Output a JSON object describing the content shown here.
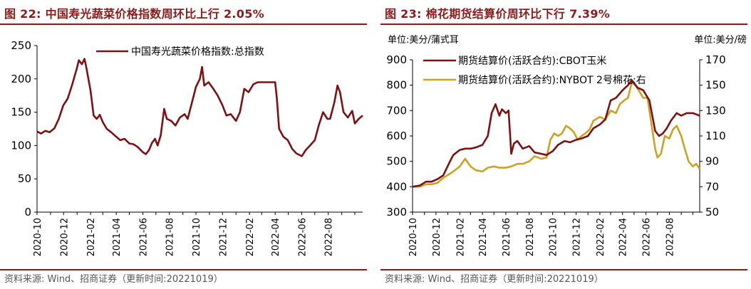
{
  "panels": {
    "left": {
      "title": "图 22:  中国寿光蔬菜价格指数周环比上行 2.05%",
      "source": "资料来源: Wind、招商证券（更新时间:20221019）"
    },
    "right": {
      "title": "图 23:  棉花期货结算价周环比下行 7.39%",
      "source": "资料来源: Wind、招商证券（更新时间:20221019）",
      "unit_left": "单位:美分/蒲式耳",
      "unit_right": "单位:美分/磅"
    }
  },
  "colors": {
    "accent": "#8B1A1A",
    "series_dark": "#7B1113",
    "series_gold": "#C9A227",
    "axis": "#000000",
    "source_text": "#555555"
  },
  "chart_data": [
    {
      "type": "line",
      "title": "中国寿光蔬菜价格指数周环比上行 2.05%",
      "x_tick_labels": [
        "2020-10",
        "2020-12",
        "2021-02",
        "2021-04",
        "2021-06",
        "2021-08",
        "2021-10",
        "2021-12",
        "2022-02",
        "2022-04",
        "2022-06",
        "2022-08"
      ],
      "x_range": [
        "2020-10-01",
        "2022-10-19"
      ],
      "ylim": [
        0,
        250
      ],
      "yticks": [
        0,
        50,
        100,
        150,
        200,
        250
      ],
      "legend_position": "top-right",
      "grid": false,
      "series": [
        {
          "name": "中国寿光蔬菜价格指数:总指数",
          "color": "#7B1113",
          "points": [
            [
              "2020-10-01",
              121
            ],
            [
              "2020-10-10",
              118
            ],
            [
              "2020-10-20",
              122
            ],
            [
              "2020-10-30",
              120
            ],
            [
              "2020-11-10",
              126
            ],
            [
              "2020-11-20",
              140
            ],
            [
              "2020-11-30",
              160
            ],
            [
              "2020-12-10",
              170
            ],
            [
              "2020-12-20",
              190
            ],
            [
              "2020-12-31",
              215
            ],
            [
              "2021-01-05",
              228
            ],
            [
              "2021-01-12",
              222
            ],
            [
              "2021-01-18",
              230
            ],
            [
              "2021-01-22",
              218
            ],
            [
              "2021-02-01",
              182
            ],
            [
              "2021-02-08",
              145
            ],
            [
              "2021-02-15",
              140
            ],
            [
              "2021-02-22",
              146
            ],
            [
              "2021-03-01",
              135
            ],
            [
              "2021-03-10",
              125
            ],
            [
              "2021-03-20",
              120
            ],
            [
              "2021-04-01",
              113
            ],
            [
              "2021-04-10",
              108
            ],
            [
              "2021-04-20",
              110
            ],
            [
              "2021-05-01",
              103
            ],
            [
              "2021-05-10",
              102
            ],
            [
              "2021-05-20",
              98
            ],
            [
              "2021-06-01",
              90
            ],
            [
              "2021-06-08",
              87
            ],
            [
              "2021-06-15",
              93
            ],
            [
              "2021-06-22",
              104
            ],
            [
              "2021-06-29",
              110
            ],
            [
              "2021-07-05",
              100
            ],
            [
              "2021-07-12",
              115
            ],
            [
              "2021-07-20",
              155
            ],
            [
              "2021-07-26",
              140
            ],
            [
              "2021-08-05",
              137
            ],
            [
              "2021-08-15",
              130
            ],
            [
              "2021-08-25",
              142
            ],
            [
              "2021-09-05",
              147
            ],
            [
              "2021-09-12",
              140
            ],
            [
              "2021-09-20",
              160
            ],
            [
              "2021-10-01",
              188
            ],
            [
              "2021-10-10",
              200
            ],
            [
              "2021-10-15",
              218
            ],
            [
              "2021-10-20",
              190
            ],
            [
              "2021-10-30",
              195
            ],
            [
              "2021-11-10",
              185
            ],
            [
              "2021-11-20",
              175
            ],
            [
              "2021-12-01",
              160
            ],
            [
              "2021-12-10",
              145
            ],
            [
              "2021-12-20",
              147
            ],
            [
              "2022-01-01",
              137
            ],
            [
              "2022-01-10",
              150
            ],
            [
              "2022-01-20",
              185
            ],
            [
              "2022-01-30",
              180
            ],
            [
              "2022-02-10",
              192
            ],
            [
              "2022-02-20",
              195
            ],
            [
              "2022-03-01",
              195
            ],
            [
              "2022-03-20",
              195
            ],
            [
              "2022-04-01",
              195
            ],
            [
              "2022-04-05",
              170
            ],
            [
              "2022-04-10",
              125
            ],
            [
              "2022-04-20",
              113
            ],
            [
              "2022-04-30",
              108
            ],
            [
              "2022-05-10",
              95
            ],
            [
              "2022-05-20",
              88
            ],
            [
              "2022-06-01",
              84
            ],
            [
              "2022-06-10",
              93
            ],
            [
              "2022-06-20",
              100
            ],
            [
              "2022-07-01",
              108
            ],
            [
              "2022-07-10",
              130
            ],
            [
              "2022-07-20",
              150
            ],
            [
              "2022-07-30",
              140
            ],
            [
              "2022-08-05",
              140
            ],
            [
              "2022-08-15",
              165
            ],
            [
              "2022-08-22",
              190
            ],
            [
              "2022-08-28",
              180
            ],
            [
              "2022-09-05",
              150
            ],
            [
              "2022-09-15",
              142
            ],
            [
              "2022-09-25",
              152
            ],
            [
              "2022-10-01",
              133
            ],
            [
              "2022-10-10",
              140
            ],
            [
              "2022-10-19",
              145
            ]
          ]
        }
      ]
    },
    {
      "type": "line",
      "title": "棉花期货结算价周环比下行 7.39%",
      "x_tick_labels": [
        "2020-10",
        "2020-12",
        "2021-02",
        "2021-04",
        "2021-06",
        "2021-08",
        "2021-10",
        "2021-12",
        "2022-02",
        "2022-04",
        "2022-06",
        "2022-08"
      ],
      "x_range": [
        "2020-10-01",
        "2022-10-19"
      ],
      "ylim_left": [
        300,
        900
      ],
      "yticks_left": [
        300,
        400,
        500,
        600,
        700,
        800,
        900
      ],
      "ylim_right": [
        50,
        170
      ],
      "yticks_right": [
        50,
        70,
        90,
        110,
        130,
        150,
        170
      ],
      "legend_position": "top-center",
      "grid": false,
      "series": [
        {
          "name": "期货结算价(活跃合约):CBOT玉米",
          "axis": "left",
          "color": "#7B1113",
          "points": [
            [
              "2020-10-01",
              400
            ],
            [
              "2020-10-20",
              405
            ],
            [
              "2020-11-05",
              420
            ],
            [
              "2020-11-20",
              420
            ],
            [
              "2020-12-05",
              430
            ],
            [
              "2020-12-20",
              445
            ],
            [
              "2021-01-05",
              495
            ],
            [
              "2021-01-15",
              525
            ],
            [
              "2021-02-01",
              545
            ],
            [
              "2021-02-15",
              550
            ],
            [
              "2021-03-01",
              550
            ],
            [
              "2021-03-15",
              555
            ],
            [
              "2021-04-01",
              565
            ],
            [
              "2021-04-15",
              600
            ],
            [
              "2021-04-25",
              690
            ],
            [
              "2021-05-05",
              725
            ],
            [
              "2021-05-15",
              680
            ],
            [
              "2021-05-22",
              705
            ],
            [
              "2021-06-01",
              690
            ],
            [
              "2021-06-08",
              700
            ],
            [
              "2021-06-12",
              610
            ],
            [
              "2021-06-15",
              530
            ],
            [
              "2021-06-22",
              570
            ],
            [
              "2021-07-01",
              580
            ],
            [
              "2021-07-15",
              550
            ],
            [
              "2021-08-01",
              560
            ],
            [
              "2021-08-15",
              535
            ],
            [
              "2021-09-01",
              530
            ],
            [
              "2021-09-15",
              525
            ],
            [
              "2021-10-01",
              540
            ],
            [
              "2021-10-15",
              565
            ],
            [
              "2021-11-01",
              580
            ],
            [
              "2021-11-15",
              575
            ],
            [
              "2021-12-01",
              585
            ],
            [
              "2021-12-15",
              590
            ],
            [
              "2022-01-01",
              600
            ],
            [
              "2022-01-15",
              630
            ],
            [
              "2022-02-01",
              645
            ],
            [
              "2022-02-15",
              665
            ],
            [
              "2022-03-01",
              740
            ],
            [
              "2022-03-15",
              750
            ],
            [
              "2022-04-01",
              780
            ],
            [
              "2022-04-15",
              800
            ],
            [
              "2022-04-25",
              820
            ],
            [
              "2022-05-10",
              790
            ],
            [
              "2022-05-25",
              780
            ],
            [
              "2022-06-10",
              740
            ],
            [
              "2022-06-25",
              620
            ],
            [
              "2022-07-05",
              600
            ],
            [
              "2022-07-15",
              610
            ],
            [
              "2022-07-25",
              630
            ],
            [
              "2022-08-05",
              660
            ],
            [
              "2022-08-20",
              690
            ],
            [
              "2022-09-01",
              680
            ],
            [
              "2022-09-15",
              690
            ],
            [
              "2022-10-01",
              690
            ],
            [
              "2022-10-10",
              685
            ],
            [
              "2022-10-19",
              680
            ]
          ]
        },
        {
          "name": "期货结算价(活跃合约):NYBOT 2号棉花:右",
          "axis": "right",
          "color": "#C9A227",
          "points": [
            [
              "2020-10-01",
              70
            ],
            [
              "2020-10-20",
              70
            ],
            [
              "2020-11-05",
              72
            ],
            [
              "2020-11-20",
              72
            ],
            [
              "2020-12-05",
              73
            ],
            [
              "2020-12-20",
              77
            ],
            [
              "2021-01-05",
              80
            ],
            [
              "2021-01-15",
              82
            ],
            [
              "2021-02-01",
              86
            ],
            [
              "2021-02-15",
              92
            ],
            [
              "2021-03-01",
              86
            ],
            [
              "2021-03-15",
              83
            ],
            [
              "2021-04-01",
              82
            ],
            [
              "2021-04-15",
              85
            ],
            [
              "2021-05-01",
              86
            ],
            [
              "2021-05-15",
              85
            ],
            [
              "2021-06-01",
              85
            ],
            [
              "2021-06-15",
              86
            ],
            [
              "2021-07-01",
              88
            ],
            [
              "2021-07-15",
              88
            ],
            [
              "2021-08-01",
              90
            ],
            [
              "2021-08-15",
              94
            ],
            [
              "2021-09-01",
              92
            ],
            [
              "2021-09-15",
              93
            ],
            [
              "2021-09-25",
              107
            ],
            [
              "2021-10-05",
              112
            ],
            [
              "2021-10-15",
              110
            ],
            [
              "2021-10-25",
              112
            ],
            [
              "2021-11-05",
              118
            ],
            [
              "2021-11-15",
              116
            ],
            [
              "2021-11-25",
              113
            ],
            [
              "2021-12-05",
              107
            ],
            [
              "2021-12-15",
              110
            ],
            [
              "2021-12-25",
              112
            ],
            [
              "2022-01-05",
              115
            ],
            [
              "2022-01-15",
              122
            ],
            [
              "2022-02-01",
              125
            ],
            [
              "2022-02-15",
              123
            ],
            [
              "2022-03-01",
              130
            ],
            [
              "2022-03-15",
              128
            ],
            [
              "2022-03-25",
              135
            ],
            [
              "2022-04-05",
              138
            ],
            [
              "2022-04-15",
              140
            ],
            [
              "2022-04-25",
              152
            ],
            [
              "2022-05-05",
              150
            ],
            [
              "2022-05-15",
              145
            ],
            [
              "2022-05-25",
              140
            ],
            [
              "2022-06-05",
              140
            ],
            [
              "2022-06-15",
              120
            ],
            [
              "2022-06-25",
              100
            ],
            [
              "2022-07-01",
              93
            ],
            [
              "2022-07-10",
              96
            ],
            [
              "2022-07-20",
              110
            ],
            [
              "2022-08-01",
              108
            ],
            [
              "2022-08-10",
              115
            ],
            [
              "2022-08-20",
              118
            ],
            [
              "2022-09-01",
              110
            ],
            [
              "2022-09-10",
              100
            ],
            [
              "2022-09-20",
              90
            ],
            [
              "2022-10-01",
              86
            ],
            [
              "2022-10-10",
              88
            ],
            [
              "2022-10-19",
              84
            ]
          ]
        }
      ]
    }
  ]
}
